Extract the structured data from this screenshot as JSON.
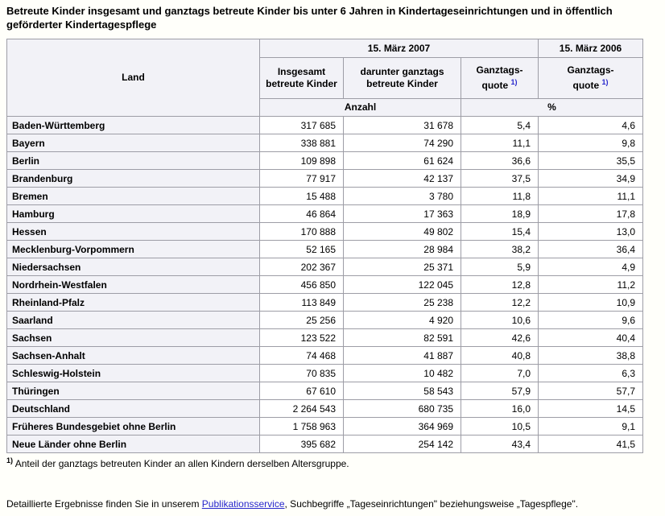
{
  "page": {
    "title": "Betreute Kinder insgesamt und ganztags betreute Kinder bis unter 6 Jahren in Kindertageseinrichtungen und in öffentlich geförderter Kindertagespflege",
    "footnote": {
      "marker": "1)",
      "text": "Anteil der ganztags betreuten Kinder an allen Kindern derselben Altersgruppe."
    },
    "footer": {
      "text_before_link": "Detaillierte Ergebnisse finden Sie in unserem ",
      "link_label": "Publikationsservice",
      "text_after_link": ", Suchbegriffe „Tageseinrichtungen\" beziehungsweise „Tagespflege\"."
    }
  },
  "colors": {
    "accent_blue": "#2626cc",
    "header_bg": "#f2f2f7",
    "border_grey": "#9d9da6",
    "page_bg": "#fffffa"
  },
  "table": {
    "col_land": "Land",
    "group_2007": "15. März 2007",
    "group_2006": "15. März 2006",
    "col_total": "Insgesamt betreute Kinder",
    "col_fulltime": "darunter ganztags betreute Kinder",
    "col_quote_line1": "Ganztags-",
    "col_quote_line2": "quote",
    "footnote_marker": "1)",
    "unit_count": "Anzahl",
    "unit_percent": "%"
  },
  "chart_data": {
    "type": "table",
    "title": "Betreute Kinder insgesamt und ganztags betreute Kinder bis unter 6 Jahren in Kindertageseinrichtungen und in öffentlich geförderter Kindertagespflege",
    "columns": [
      "Land",
      "Insgesamt betreute Kinder (Anzahl, 15. März 2007)",
      "darunter ganztags betreute Kinder (Anzahl, 15. März 2007)",
      "Ganztagsquote % (15. März 2007)",
      "Ganztagsquote % (15. März 2006)"
    ],
    "rows": [
      [
        "Baden-Württemberg",
        317685,
        31678,
        5.4,
        4.6
      ],
      [
        "Bayern",
        338881,
        74290,
        11.1,
        9.8
      ],
      [
        "Berlin",
        109898,
        61624,
        36.6,
        35.5
      ],
      [
        "Brandenburg",
        77917,
        42137,
        37.5,
        34.9
      ],
      [
        "Bremen",
        15488,
        3780,
        11.8,
        11.1
      ],
      [
        "Hamburg",
        46864,
        17363,
        18.9,
        17.8
      ],
      [
        "Hessen",
        170888,
        49802,
        15.4,
        13.0
      ],
      [
        "Mecklenburg-Vorpommern",
        52165,
        28984,
        38.2,
        36.4
      ],
      [
        "Niedersachsen",
        202367,
        25371,
        5.9,
        4.9
      ],
      [
        "Nordrhein-Westfalen",
        456850,
        122045,
        12.8,
        11.2
      ],
      [
        "Rheinland-Pfalz",
        113849,
        25238,
        12.2,
        10.9
      ],
      [
        "Saarland",
        25256,
        4920,
        10.6,
        9.6
      ],
      [
        "Sachsen",
        123522,
        82591,
        42.6,
        40.4
      ],
      [
        "Sachsen-Anhalt",
        74468,
        41887,
        40.8,
        38.8
      ],
      [
        "Schleswig-Holstein",
        70835,
        10482,
        7.0,
        6.3
      ],
      [
        "Thüringen",
        67610,
        58543,
        57.9,
        57.7
      ],
      [
        "Deutschland",
        2264543,
        680735,
        16.0,
        14.5
      ],
      [
        "Früheres Bundesgebiet ohne Berlin",
        1758963,
        364969,
        10.5,
        9.1
      ],
      [
        "Neue Länder ohne Berlin",
        395682,
        254142,
        43.4,
        41.5
      ]
    ]
  }
}
